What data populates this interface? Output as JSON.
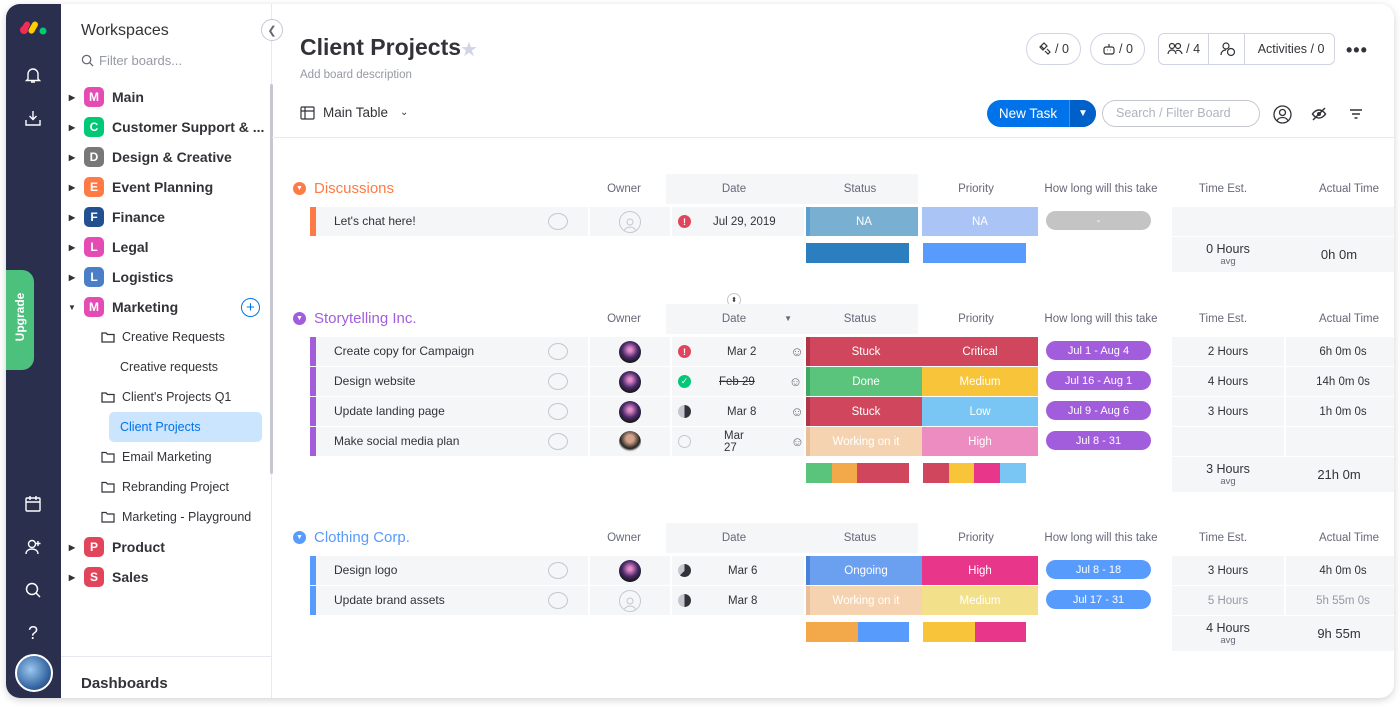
{
  "sidebar": {
    "title": "Workspaces",
    "filter_placeholder": "Filter boards...",
    "workspaces": [
      {
        "letter": "M",
        "label": "Main",
        "color": "#e44cb3"
      },
      {
        "letter": "C",
        "label": "Customer Support & ...",
        "color": "#00c875"
      },
      {
        "letter": "D",
        "label": "Design & Creative",
        "color": "#787878"
      },
      {
        "letter": "E",
        "label": "Event Planning",
        "color": "#ff7a45"
      },
      {
        "letter": "F",
        "label": "Finance",
        "color": "#225091"
      },
      {
        "letter": "L",
        "label": "Legal",
        "color": "#e44cb3"
      },
      {
        "letter": "L",
        "label": "Logistics",
        "color": "#4a7fc8"
      },
      {
        "letter": "M",
        "label": "Marketing",
        "color": "#e44cb3"
      },
      {
        "letter": "P",
        "label": "Product",
        "color": "#e2445c"
      },
      {
        "letter": "S",
        "label": "Sales",
        "color": "#e2445c"
      }
    ],
    "marketing_items": [
      {
        "label": "Creative Requests"
      },
      {
        "label": "Creative requests"
      },
      {
        "label": "Client's Projects Q1"
      },
      {
        "label": "Client Projects"
      },
      {
        "label": "Email Marketing"
      },
      {
        "label": "Rebranding Project"
      },
      {
        "label": "Marketing - Playground"
      }
    ],
    "dashboards": "Dashboards",
    "upgrade": "Upgrade"
  },
  "board": {
    "title": "Client Projects",
    "description": "Add board description",
    "view": "Main Table",
    "new_task": "New Task",
    "search_placeholder": "Search / Filter Board",
    "header": {
      "integrations": "/ 0",
      "automations": "/ 0",
      "members": "/ 4",
      "activities": "Activities / 0"
    },
    "columns": [
      "Owner",
      "Date",
      "Status",
      "Priority",
      "How long will this take",
      "Time Est.",
      "Actual Time"
    ]
  },
  "groups": [
    {
      "name": "Discussions",
      "color": "#ff7a45",
      "rows": [
        {
          "name": "Let's chat here!",
          "date": "Jul 29, 2019",
          "status": "NA",
          "status_color": "#79afd0",
          "priority": "NA",
          "priority_color": "#a9c4f5",
          "timeline": "-",
          "timeline_color": "#c4c4c4",
          "est": "",
          "actual": ""
        }
      ],
      "sum_est": "0 Hours",
      "sum_est_sub": "avg",
      "sum_actual": "0h 0m"
    },
    {
      "name": "Storytelling Inc.",
      "color": "#a25ddc",
      "rows": [
        {
          "name": "Create copy for Campaign",
          "date": "Mar 2",
          "status": "Stuck",
          "status_color": "#d0475d",
          "priority": "Critical",
          "priority_color": "#d0475d",
          "timeline": "Jul 1 - Aug 4",
          "timeline_color": "#a25ddc",
          "est": "2 Hours",
          "actual": "6h 0m 0s"
        },
        {
          "name": "Design website",
          "date": "Feb 29",
          "status": "Done",
          "status_color": "#5ac47d",
          "priority": "Medium",
          "priority_color": "#f8c53a",
          "timeline": "Jul 16 - Aug 1",
          "timeline_color": "#a25ddc",
          "est": "4 Hours",
          "actual": "14h 0m 0s"
        },
        {
          "name": "Update landing page",
          "date": "Mar 8",
          "status": "Stuck",
          "status_color": "#d0475d",
          "priority": "Low",
          "priority_color": "#79c6f4",
          "timeline": "Jul 9 - Aug 6",
          "timeline_color": "#a25ddc",
          "est": "3 Hours",
          "actual": "1h 0m 0s"
        },
        {
          "name": "Make social media plan",
          "date": "Mar 27",
          "status": "Working on it",
          "status_color": "#f6d3b0",
          "priority": "High",
          "priority_color": "#ed8cc0",
          "timeline": "Jul 8 - 31",
          "timeline_color": "#a25ddc",
          "est": "",
          "actual": ""
        }
      ],
      "sum_est": "3 Hours",
      "sum_est_sub": "avg",
      "sum_actual": "21h 0m"
    },
    {
      "name": "Clothing Corp.",
      "color": "#579bfc",
      "rows": [
        {
          "name": "Design logo",
          "date": "Mar 6",
          "status": "Ongoing",
          "status_color": "#6ba0f0",
          "priority": "High",
          "priority_color": "#e8368a",
          "timeline": "Jul 8 - 18",
          "timeline_color": "#579bfc",
          "est": "3 Hours",
          "actual": "4h 0m 0s"
        },
        {
          "name": "Update brand assets",
          "date": "Mar 8",
          "status": "Working on it",
          "status_color": "#f6d3b0",
          "priority": "Medium",
          "priority_color": "#f3e08a",
          "timeline": "Jul 17 - 31",
          "timeline_color": "#579bfc",
          "est": "5 Hours",
          "actual": "5h 55m 0s"
        }
      ],
      "sum_est": "4 Hours",
      "sum_est_sub": "avg",
      "sum_actual": "9h 55m"
    }
  ]
}
